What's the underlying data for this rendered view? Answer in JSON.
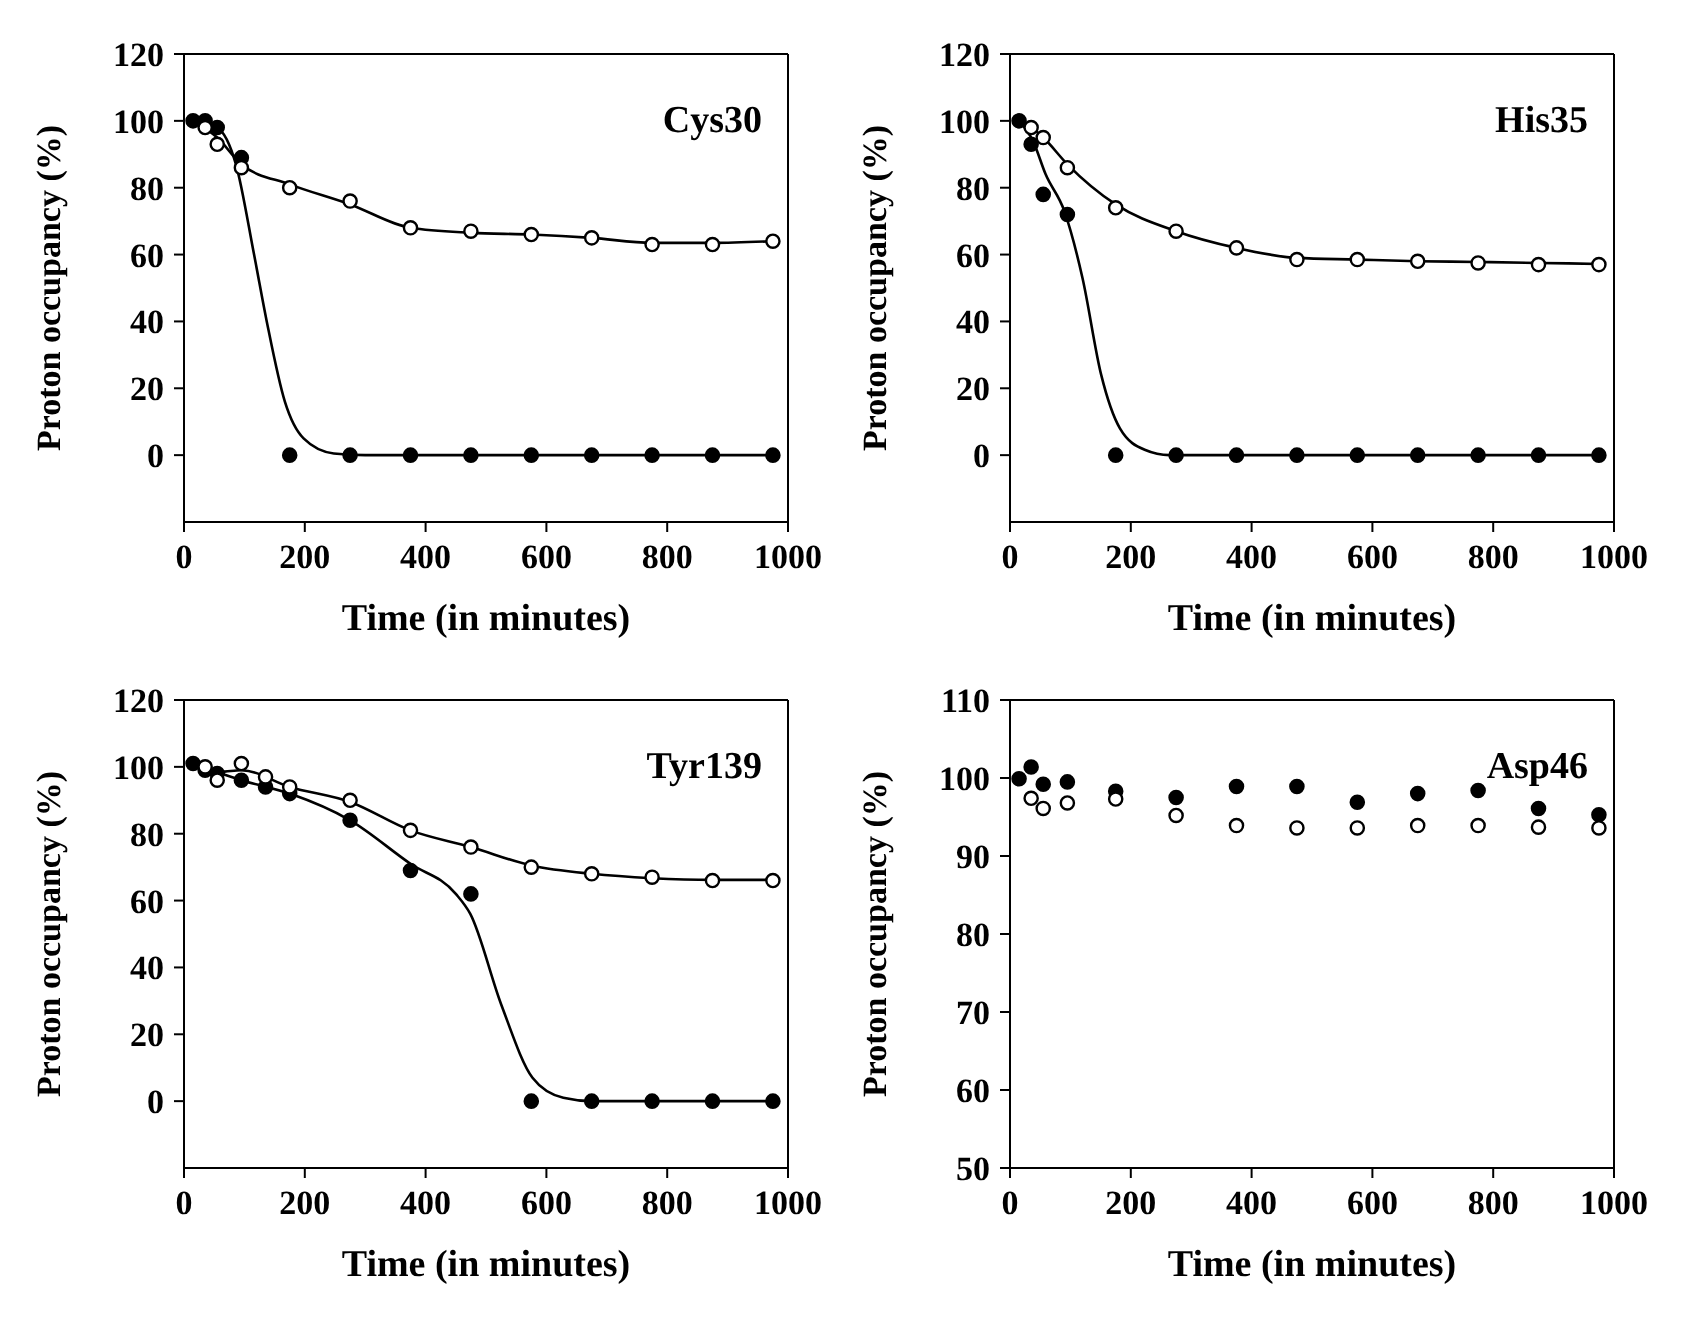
{
  "chart_data": [
    {
      "type": "scatter",
      "xlabel": "Time (in minutes)",
      "ylabel": "Proton occupancy (%)",
      "annotations": [
        "Cys30"
      ],
      "xlim": [
        0,
        1000
      ],
      "xticks": [
        0,
        200,
        400,
        600,
        800,
        1000
      ],
      "ylim": [
        -20,
        120
      ],
      "yticks": [
        0,
        20,
        40,
        60,
        80,
        100,
        120
      ],
      "marker": "circle",
      "series": [
        {
          "type": "line",
          "marker": "none",
          "color": "#000000",
          "x": [
            15,
            55,
            86,
            116,
            137,
            167,
            198,
            248,
            300,
            975
          ],
          "values": [
            100,
            98,
            87,
            60,
            40,
            16,
            5,
            0.5,
            0,
            0
          ]
        },
        {
          "type": "line",
          "marker": "none",
          "color": "#000000",
          "x": [
            15,
            55,
            95,
            175,
            275,
            375,
            475,
            575,
            675,
            775,
            875,
            975
          ],
          "values": [
            100,
            95,
            87,
            81,
            75,
            68,
            66.5,
            66,
            65,
            63.5,
            63.5,
            64
          ]
        },
        {
          "color": "#000000",
          "x": [
            15,
            35,
            55,
            95,
            175,
            275,
            375,
            475,
            575,
            675,
            775,
            875,
            975
          ],
          "values": [
            100,
            100,
            98,
            89,
            0,
            0,
            0,
            0,
            0,
            0,
            0,
            0,
            0
          ]
        },
        {
          "color": "#ffffff",
          "x": [
            35,
            55,
            95,
            175,
            275,
            375,
            475,
            575,
            675,
            775,
            875,
            975
          ],
          "values": [
            98,
            93,
            86,
            80,
            76,
            68,
            67,
            66,
            65,
            63,
            63,
            64
          ]
        }
      ]
    },
    {
      "type": "scatter",
      "xlabel": "Time (in minutes)",
      "ylabel": "Proton occupancy (%)",
      "annotations": [
        "His35"
      ],
      "xlim": [
        0,
        1000
      ],
      "xticks": [
        0,
        200,
        400,
        600,
        800,
        1000
      ],
      "ylim": [
        -20,
        120
      ],
      "yticks": [
        0,
        20,
        40,
        60,
        80,
        100,
        120
      ],
      "marker": "circle",
      "series": [
        {
          "type": "line",
          "marker": "none",
          "color": "#000000",
          "x": [
            15,
            38,
            59,
            90,
            120,
            151,
            182,
            223,
            264,
            975
          ],
          "values": [
            100,
            94,
            84,
            73,
            53,
            24,
            8,
            1.6,
            0,
            0
          ]
        },
        {
          "type": "line",
          "marker": "none",
          "color": "#000000",
          "x": [
            15,
            35,
            55,
            95,
            175,
            275,
            375,
            475,
            575,
            675,
            775,
            875,
            975
          ],
          "values": [
            100,
            98,
            95,
            87,
            75,
            67,
            62,
            59,
            58.5,
            58,
            57.8,
            57.5,
            57.2
          ]
        },
        {
          "color": "#000000",
          "x": [
            15,
            35,
            55,
            95,
            175,
            275,
            375,
            475,
            575,
            675,
            775,
            875,
            975
          ],
          "values": [
            100,
            93,
            78,
            72,
            0,
            0,
            0,
            0,
            0,
            0,
            0,
            0,
            0
          ]
        },
        {
          "color": "#ffffff",
          "x": [
            35,
            55,
            95,
            175,
            275,
            375,
            475,
            575,
            675,
            775,
            875,
            975
          ],
          "values": [
            98,
            95,
            86,
            74,
            67,
            62,
            58.5,
            58.5,
            58,
            57.5,
            57,
            57
          ]
        }
      ]
    },
    {
      "type": "scatter",
      "xlabel": "Time (in minutes)",
      "ylabel": "Proton occupancy (%)",
      "annotations": [
        "Tyr139"
      ],
      "xlim": [
        0,
        1000
      ],
      "xticks": [
        0,
        200,
        400,
        600,
        800,
        1000
      ],
      "ylim": [
        -20,
        120
      ],
      "yticks": [
        0,
        20,
        40,
        60,
        80,
        100,
        120
      ],
      "marker": "circle",
      "series": [
        {
          "type": "line",
          "marker": "none",
          "color": "#000000",
          "x": [
            15,
            95,
            175,
            275,
            375,
            450,
            474,
            525,
            577,
            628,
            675,
            975
          ],
          "values": [
            101,
            96,
            92,
            84,
            71,
            62,
            56,
            29,
            7,
            1,
            0,
            0
          ]
        },
        {
          "type": "line",
          "marker": "none",
          "color": "#000000",
          "x": [
            15,
            60,
            95,
            175,
            275,
            375,
            475,
            575,
            675,
            775,
            875,
            975
          ],
          "values": [
            100,
            98.5,
            99,
            94,
            89.5,
            81,
            76,
            70.5,
            68,
            66.7,
            66.2,
            66.2
          ]
        },
        {
          "color": "#000000",
          "x": [
            15,
            35,
            55,
            95,
            135,
            175,
            275,
            375,
            475,
            575,
            675,
            775,
            875,
            975
          ],
          "values": [
            101,
            99,
            98,
            96,
            94,
            92,
            84,
            69,
            62,
            0,
            0,
            0,
            0,
            0
          ]
        },
        {
          "color": "#ffffff",
          "x": [
            35,
            55,
            95,
            135,
            175,
            275,
            375,
            475,
            575,
            675,
            775,
            875,
            975
          ],
          "values": [
            100,
            96,
            101,
            97,
            94,
            90,
            81,
            76,
            70,
            68,
            67,
            66,
            66
          ]
        }
      ]
    },
    {
      "type": "scatter",
      "xlabel": "Time (in minutes)",
      "ylabel": "Proton occupancy (%)",
      "annotations": [
        "Asp46"
      ],
      "xlim": [
        0,
        1000
      ],
      "xticks": [
        0,
        200,
        400,
        600,
        800,
        1000
      ],
      "ylim": [
        50,
        110
      ],
      "yticks": [
        50,
        60,
        70,
        80,
        90,
        100,
        110
      ],
      "marker": "circle",
      "series": [
        {
          "color": "#000000",
          "x": [
            15,
            35,
            55,
            95,
            175,
            275,
            375,
            475,
            575,
            675,
            775,
            875,
            975
          ],
          "values": [
            99.9,
            101.4,
            99.2,
            99.5,
            98.3,
            97.5,
            98.9,
            98.9,
            96.9,
            98,
            98.4,
            96.1,
            95.3
          ]
        },
        {
          "color": "#ffffff",
          "x": [
            35,
            55,
            95,
            175,
            275,
            375,
            475,
            575,
            675,
            775,
            875,
            975
          ],
          "values": [
            97.4,
            96.1,
            96.8,
            97.3,
            95.2,
            93.9,
            93.6,
            93.6,
            93.9,
            93.9,
            93.7,
            93.6
          ]
        }
      ]
    }
  ]
}
